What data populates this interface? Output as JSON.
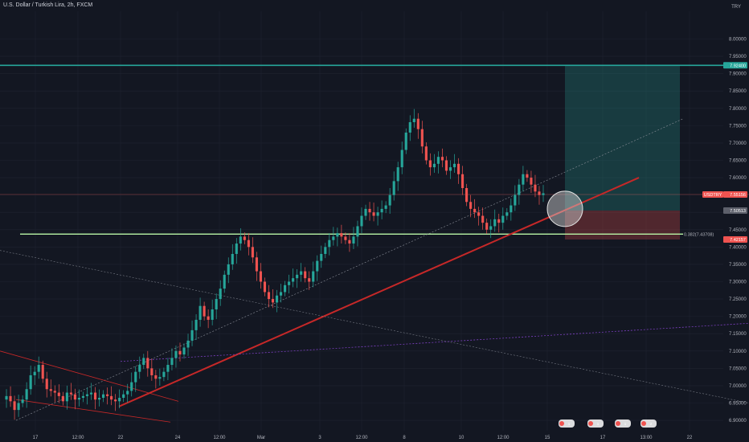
{
  "header": {
    "title": "U.S. Dollar / Turkish Lira, 2h, FXCM",
    "currency": "TRY"
  },
  "colors": {
    "background": "#131722",
    "up": "#26a69a",
    "down": "#ef5350",
    "axis_text": "#b2b5be",
    "grid": "#1f2330",
    "target_line": "#26a69a",
    "support_line": "#b9f6a6",
    "trend_line": "#c62828"
  },
  "chart_data": {
    "type": "candlestick",
    "title": "U.S. Dollar / Turkish Lira, 2h, FXCM",
    "ylim": [
      6.87,
      8.08
    ],
    "y_ticks": [
      "8.00000",
      "7.95000",
      "7.90000",
      "7.85000",
      "7.80000",
      "7.75000",
      "7.70000",
      "7.65000",
      "7.60000",
      "7.55000",
      "7.50000",
      "7.45000",
      "7.40000",
      "7.35000",
      "7.30000",
      "7.25000",
      "7.20000",
      "7.15000",
      "7.10000",
      "7.05000",
      "7.00000",
      "6.95000",
      "6.90000"
    ],
    "x_ticks": [
      "17",
      "12:00",
      "22",
      "24",
      "12:00",
      "Mar",
      "3",
      "12:00",
      "8",
      "10",
      "12:00",
      "15",
      "17",
      "13:00",
      "22"
    ],
    "close_path": [
      6.96,
      6.97,
      6.955,
      6.93,
      6.95,
      6.96,
      6.99,
      7.03,
      7.04,
      7.06,
      7.02,
      6.99,
      6.985,
      6.98,
      6.97,
      6.955,
      6.98,
      6.975,
      6.96,
      6.965,
      6.97,
      6.975,
      6.98,
      6.96,
      6.965,
      6.975,
      6.97,
      6.96,
      6.955,
      6.965,
      6.975,
      6.985,
      7.01,
      7.04,
      7.06,
      7.08,
      7.05,
      7.03,
      7.02,
      7.025,
      7.04,
      7.06,
      7.08,
      7.1,
      7.09,
      7.11,
      7.13,
      7.16,
      7.19,
      7.23,
      7.2,
      7.19,
      7.22,
      7.25,
      7.28,
      7.32,
      7.35,
      7.38,
      7.41,
      7.43,
      7.42,
      7.4,
      7.37,
      7.33,
      7.3,
      7.27,
      7.25,
      7.24,
      7.26,
      7.27,
      7.29,
      7.3,
      7.31,
      7.32,
      7.33,
      7.31,
      7.3,
      7.33,
      7.36,
      7.38,
      7.4,
      7.42,
      7.43,
      7.44,
      7.43,
      7.42,
      7.41,
      7.43,
      7.46,
      7.49,
      7.51,
      7.5,
      7.49,
      7.5,
      7.51,
      7.52,
      7.55,
      7.59,
      7.63,
      7.68,
      7.73,
      7.76,
      7.77,
      7.74,
      7.69,
      7.65,
      7.63,
      7.64,
      7.66,
      7.65,
      7.62,
      7.63,
      7.64,
      7.61,
      7.57,
      7.53,
      7.51,
      7.5,
      7.49,
      7.47,
      7.45,
      7.46,
      7.48,
      7.47,
      7.49,
      7.5,
      7.52,
      7.55,
      7.58,
      7.61,
      7.6,
      7.58,
      7.56,
      7.55,
      7.555
    ],
    "levels": {
      "target": {
        "value": 7.924,
        "label": "7.92400"
      },
      "support": {
        "value": 7.43708,
        "label": "0.382(7.43708)"
      },
      "entry": {
        "value": 7.50513,
        "label": "7.50513"
      },
      "stop": {
        "value": 7.42157,
        "label": "7.42157"
      },
      "current": {
        "value": 7.55156,
        "symbol": "USDTRY",
        "label": "7.55156"
      }
    },
    "events": [
      "1",
      "1",
      "1",
      "2"
    ]
  }
}
